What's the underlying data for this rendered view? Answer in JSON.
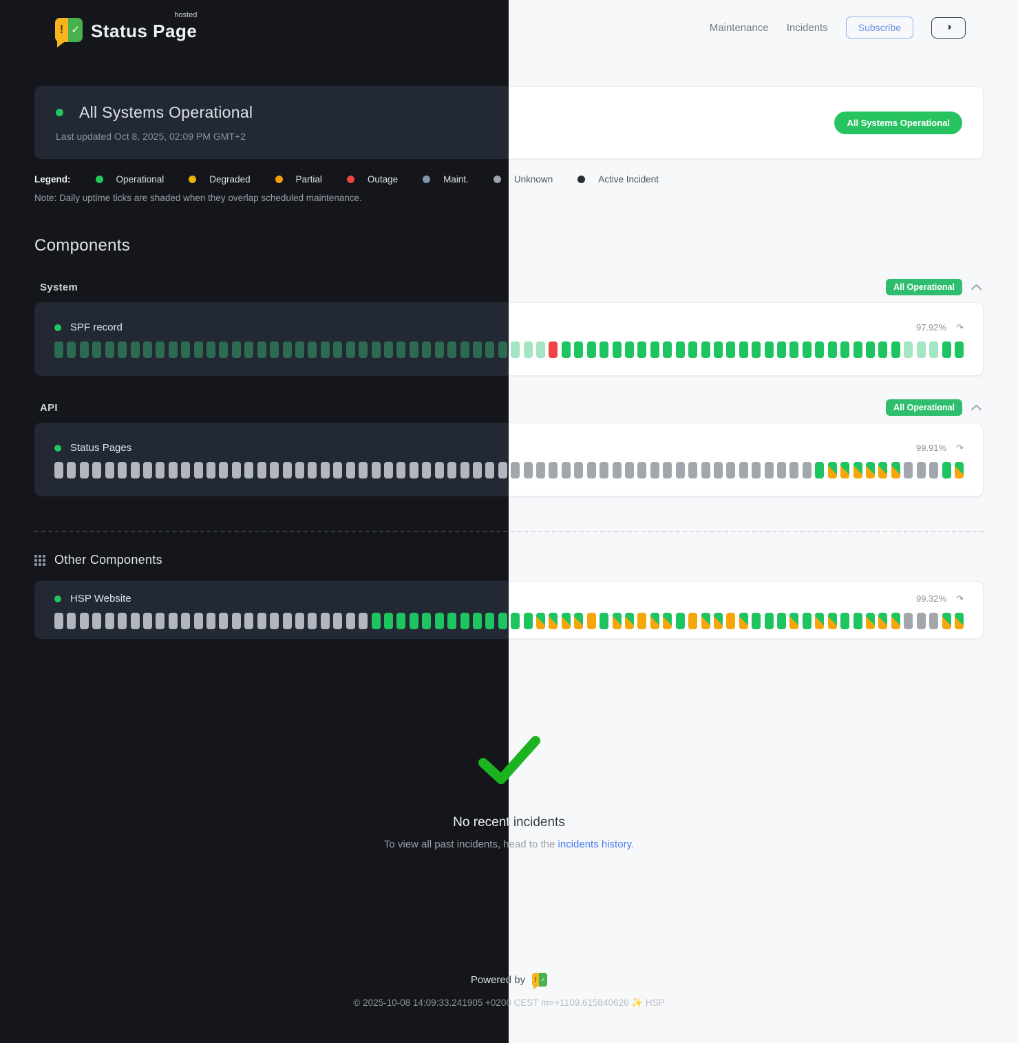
{
  "brand": {
    "name": "Status Page",
    "superscript": "hosted",
    "alert_glyph": "!",
    "check_glyph": "✓"
  },
  "nav": {
    "maintenance": "Maintenance",
    "incidents": "Incidents",
    "subscribe": "Subscribe",
    "theme_icon": "◑"
  },
  "hero": {
    "title": "All Systems Operational",
    "last_updated": "Last updated Oct 8, 2025, 02:09 PM GMT+2",
    "badge": "All Systems Operational",
    "badge_color": "#27c361"
  },
  "legend": {
    "label": "Legend:",
    "items": [
      {
        "label": "Operational",
        "color": "#22c55e"
      },
      {
        "label": "Degraded",
        "color": "#eab308"
      },
      {
        "label": "Partial",
        "color": "#f59e0b"
      },
      {
        "label": "Outage",
        "color": "#ef4444"
      },
      {
        "label": "Maint.",
        "color": "#7e98ab"
      },
      {
        "label": "Unknown",
        "color": "#9ca3af"
      },
      {
        "label": "Active Incident",
        "color": "#262c35"
      }
    ],
    "note": "Note: Daily uptime ticks are shaded when they overlap scheduled maintenance."
  },
  "components": {
    "heading": "Components",
    "tick_legend": {
      "g": "operational #1ec45f",
      "gd": "operational (dark muted) #2d6b50",
      "p": "shaded maintenance overlap #a4e6c3",
      "r": "outage #ef4444",
      "o": "degraded #f6a609",
      "u": "unknown gray",
      "go": "partial green/orange split"
    },
    "groups": [
      {
        "name": "System",
        "badge": "All Operational",
        "rows": [
          {
            "name": "SPF record",
            "uptime": "97.92%",
            "ticks": [
              [
                "gd",
                36
              ],
              [
                "p",
                3
              ],
              [
                "r",
                1
              ],
              [
                "g",
                27
              ],
              [
                "p",
                3
              ],
              [
                "g",
                2
              ]
            ]
          }
        ]
      },
      {
        "name": "API",
        "badge": "All Operational",
        "rows": [
          {
            "name": "Status Pages",
            "uptime": "99.91%",
            "ticks": [
              [
                "u",
                60
              ],
              [
                "g",
                1
              ],
              [
                "go",
                6
              ],
              [
                "u",
                3
              ],
              [
                "g",
                1
              ],
              [
                "go",
                1
              ]
            ]
          }
        ]
      }
    ],
    "other": {
      "heading": "Other Components",
      "rows": [
        {
          "name": "HSP Website",
          "uptime": "99.32%",
          "ticks": [
            [
              "u",
              25
            ],
            [
              "g",
              11
            ],
            [
              "g",
              2
            ],
            [
              "go",
              4
            ],
            [
              "o",
              1
            ],
            [
              "g",
              1
            ],
            [
              "go",
              2
            ],
            [
              "o",
              1
            ],
            [
              "go",
              2
            ],
            [
              "g",
              1
            ],
            [
              "o",
              1
            ],
            [
              "go",
              2
            ],
            [
              "o",
              1
            ],
            [
              "go",
              1
            ],
            [
              "g",
              3
            ],
            [
              "go",
              1
            ],
            [
              "g",
              1
            ],
            [
              "go",
              2
            ],
            [
              "g",
              2
            ],
            [
              "go",
              3
            ],
            [
              "u",
              3
            ],
            [
              "go",
              2
            ]
          ]
        }
      ]
    }
  },
  "incidents_section": {
    "title": "No recent incidents",
    "subtitle_prefix": "To view all past incidents, head to the ",
    "link": "incidents history",
    "suffix": "."
  },
  "footer": {
    "powered_by": "Powered by",
    "copyright": "© 2025-10-08 14:09:33.241905 +0200 CEST m=+1109.615840626 ✨ HSP"
  }
}
